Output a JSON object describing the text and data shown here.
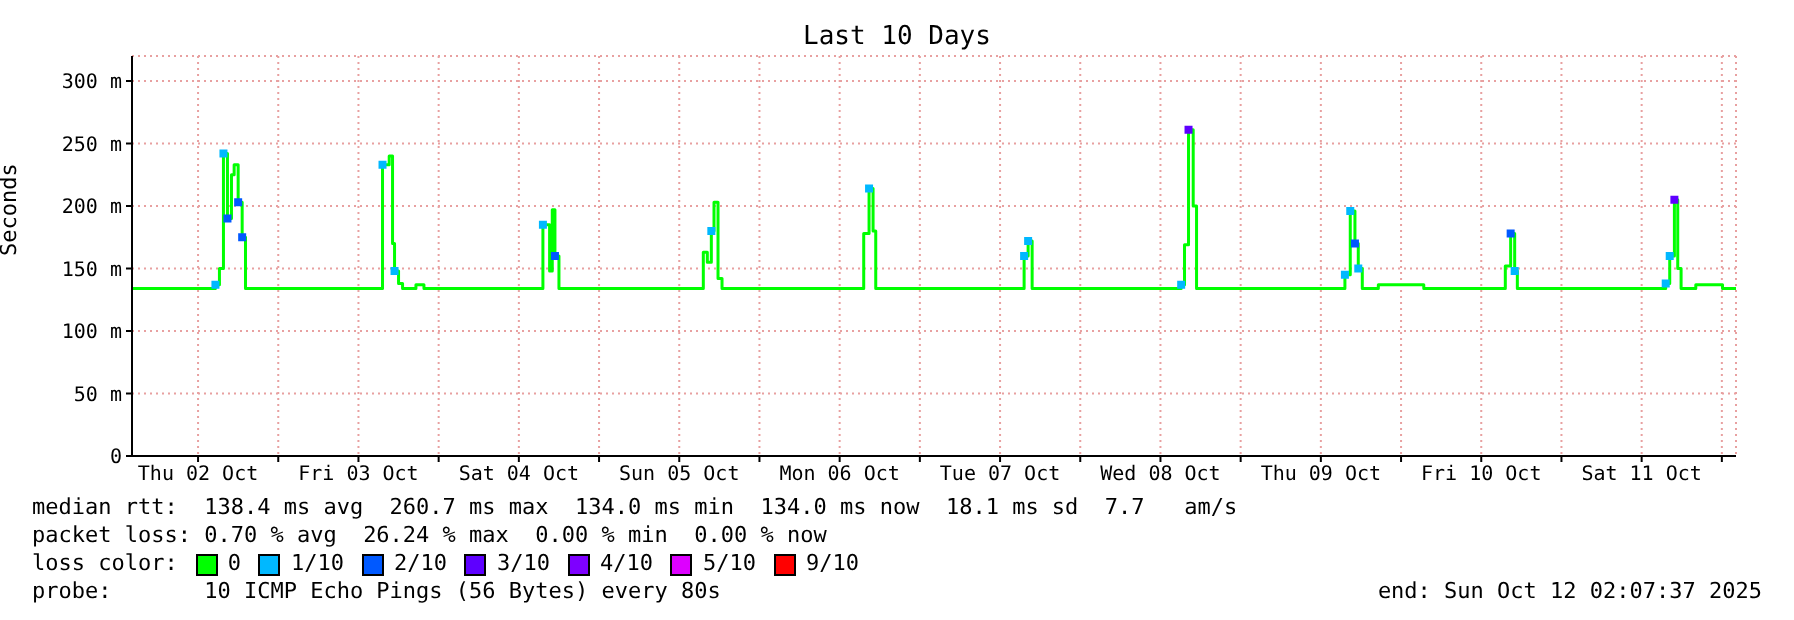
{
  "chart_data": {
    "type": "step",
    "title": "Last 10 Days",
    "ylabel": "Seconds",
    "legend_title": "loss color:",
    "x": [
      "2025-10-02T02:07",
      "2025-10-02T14:18",
      "2025-10-02T14:36",
      "2025-10-02T15:12",
      "2025-10-02T15:48",
      "2025-10-02T16:24",
      "2025-10-02T17:00",
      "2025-10-02T17:24",
      "2025-10-02T18:00",
      "2025-10-02T18:36",
      "2025-10-02T19:06",
      "2025-10-03T15:18",
      "2025-10-03T15:36",
      "2025-10-03T16:36",
      "2025-10-03T17:06",
      "2025-10-03T17:24",
      "2025-10-03T18:00",
      "2025-10-03T18:36",
      "2025-10-03T20:36",
      "2025-10-03T21:48",
      "2025-10-04T15:18",
      "2025-10-04T15:36",
      "2025-10-04T16:36",
      "2025-10-04T17:00",
      "2025-10-04T17:24",
      "2025-10-04T18:00",
      "2025-10-05T15:18",
      "2025-10-05T15:36",
      "2025-10-05T16:12",
      "2025-10-05T16:48",
      "2025-10-05T17:12",
      "2025-10-05T17:48",
      "2025-10-05T18:24",
      "2025-10-06T15:18",
      "2025-10-06T15:36",
      "2025-10-06T16:24",
      "2025-10-06T17:00",
      "2025-10-06T17:24",
      "2025-10-07T15:18",
      "2025-10-07T15:36",
      "2025-10-07T16:12",
      "2025-10-07T16:48",
      "2025-10-08T14:48",
      "2025-10-08T15:06",
      "2025-10-08T15:36",
      "2025-10-08T16:12",
      "2025-10-08T16:54",
      "2025-10-08T17:24",
      "2025-10-09T15:18",
      "2025-10-09T15:36",
      "2025-10-09T16:24",
      "2025-10-09T17:06",
      "2025-10-09T17:36",
      "2025-10-09T18:12",
      "2025-10-09T20:36",
      "2025-10-10T03:24",
      "2025-10-10T15:18",
      "2025-10-10T15:36",
      "2025-10-10T16:24",
      "2025-10-10T17:00",
      "2025-10-10T17:24",
      "2025-10-11T15:18",
      "2025-10-11T15:36",
      "2025-10-11T16:12",
      "2025-10-11T16:54",
      "2025-10-11T17:24",
      "2025-10-11T17:54",
      "2025-10-11T20:06",
      "2025-10-12T00:06",
      "2025-10-12T02:07"
    ],
    "series": [
      {
        "name": "0",
        "color": "#00ff00",
        "values": [
          134,
          134,
          137,
          150,
          242,
          190,
          225,
          233,
          203,
          175,
          134,
          134,
          233,
          240,
          170,
          148,
          138,
          134,
          137,
          134,
          134,
          185,
          148,
          197,
          160,
          134,
          134,
          163,
          155,
          180,
          203,
          142,
          134,
          134,
          178,
          214,
          180,
          134,
          134,
          160,
          172,
          134,
          134,
          137,
          169,
          261,
          200,
          134,
          134,
          145,
          196,
          170,
          150,
          134,
          137,
          134,
          134,
          152,
          178,
          148,
          134,
          134,
          138,
          160,
          205,
          150,
          134,
          137,
          134,
          134
        ]
      },
      {
        "name": "1/10",
        "color": "#00b8ff",
        "type": "scatter",
        "marker": "square",
        "values": [
          null,
          null,
          137,
          null,
          242,
          null,
          null,
          null,
          null,
          null,
          null,
          null,
          233,
          null,
          null,
          148,
          null,
          null,
          null,
          null,
          null,
          185,
          null,
          null,
          null,
          null,
          null,
          null,
          null,
          180,
          null,
          null,
          null,
          null,
          null,
          214,
          null,
          null,
          null,
          160,
          172,
          null,
          null,
          137,
          null,
          null,
          null,
          null,
          null,
          145,
          196,
          null,
          150,
          null,
          null,
          null,
          null,
          null,
          null,
          148,
          null,
          null,
          138,
          160,
          null,
          null,
          null,
          null,
          null,
          null
        ]
      },
      {
        "name": "2/10",
        "color": "#0059ff",
        "type": "scatter",
        "marker": "square",
        "values": [
          null,
          null,
          null,
          null,
          null,
          190,
          null,
          null,
          203,
          175,
          null,
          null,
          null,
          null,
          null,
          null,
          null,
          null,
          null,
          null,
          null,
          null,
          null,
          null,
          160,
          null,
          null,
          null,
          null,
          null,
          null,
          null,
          null,
          null,
          null,
          null,
          null,
          null,
          null,
          null,
          null,
          null,
          null,
          null,
          null,
          null,
          null,
          null,
          null,
          null,
          null,
          170,
          null,
          null,
          null,
          null,
          null,
          null,
          178,
          null,
          null,
          null,
          null,
          null,
          null,
          null,
          null,
          null,
          null,
          null
        ]
      },
      {
        "name": "3/10",
        "color": "#5e00ff",
        "type": "scatter",
        "marker": "square",
        "values": [
          null,
          null,
          null,
          null,
          null,
          null,
          null,
          null,
          null,
          null,
          null,
          null,
          null,
          null,
          null,
          null,
          null,
          null,
          null,
          null,
          null,
          null,
          null,
          null,
          null,
          null,
          null,
          null,
          null,
          null,
          null,
          null,
          null,
          null,
          null,
          null,
          null,
          null,
          null,
          null,
          null,
          null,
          null,
          null,
          null,
          261,
          null,
          null,
          null,
          null,
          null,
          null,
          null,
          null,
          null,
          null,
          null,
          null,
          null,
          null,
          null,
          null,
          null,
          null,
          205,
          null,
          null,
          null,
          null,
          null
        ]
      },
      {
        "name": "4/10",
        "color": "#7e00ff",
        "type": "scatter",
        "marker": "square",
        "values": [
          null,
          null,
          null,
          null,
          null,
          null,
          null,
          null,
          null,
          null,
          null,
          null,
          null,
          null,
          null,
          null,
          null,
          null,
          null,
          null,
          null,
          null,
          null,
          null,
          null,
          null,
          null,
          null,
          null,
          null,
          null,
          null,
          null,
          null,
          null,
          null,
          null,
          null,
          null,
          null,
          null,
          null,
          null,
          null,
          null,
          null,
          null,
          null,
          null,
          null,
          null,
          null,
          null,
          null,
          null,
          null,
          null,
          null,
          null,
          null,
          null,
          null,
          null,
          null,
          null,
          null,
          null,
          null,
          null,
          null
        ]
      },
      {
        "name": "5/10",
        "color": "#dd00ff",
        "type": "scatter",
        "marker": "square",
        "values": [
          null,
          null,
          null,
          null,
          null,
          null,
          null,
          null,
          null,
          null,
          null,
          null,
          null,
          null,
          null,
          null,
          null,
          null,
          null,
          null,
          null,
          null,
          null,
          null,
          null,
          null,
          null,
          null,
          null,
          null,
          null,
          null,
          null,
          null,
          null,
          null,
          null,
          null,
          null,
          null,
          null,
          null,
          null,
          null,
          null,
          null,
          null,
          null,
          null,
          null,
          null,
          null,
          null,
          null,
          null,
          null,
          null,
          null,
          null,
          null,
          null,
          null,
          null,
          null,
          null,
          null,
          null,
          null,
          null,
          null
        ]
      },
      {
        "name": "9/10",
        "color": "#ff0000",
        "type": "scatter",
        "marker": "square",
        "values": [
          null,
          null,
          null,
          null,
          null,
          null,
          null,
          null,
          null,
          null,
          null,
          null,
          null,
          null,
          null,
          null,
          null,
          null,
          null,
          null,
          null,
          null,
          null,
          null,
          null,
          null,
          null,
          null,
          null,
          null,
          null,
          null,
          null,
          null,
          null,
          null,
          null,
          null,
          null,
          null,
          null,
          null,
          null,
          null,
          null,
          null,
          null,
          null,
          null,
          null,
          null,
          null,
          null,
          null,
          null,
          null,
          null,
          null,
          null,
          null,
          null,
          null,
          null,
          null,
          null,
          null,
          null,
          null,
          null,
          null
        ]
      }
    ],
    "xlim": [
      "2025-10-02T02:07",
      "2025-10-12T02:07"
    ],
    "xticks": [
      {
        "value": "2025-10-02T12:00",
        "label": "Thu 02 Oct"
      },
      {
        "value": "2025-10-03T00:00",
        "label": null
      },
      {
        "value": "2025-10-03T12:00",
        "label": "Fri 03 Oct"
      },
      {
        "value": "2025-10-04T00:00",
        "label": null
      },
      {
        "value": "2025-10-04T12:00",
        "label": "Sat 04 Oct"
      },
      {
        "value": "2025-10-05T00:00",
        "label": null
      },
      {
        "value": "2025-10-05T12:00",
        "label": "Sun 05 Oct"
      },
      {
        "value": "2025-10-06T00:00",
        "label": null
      },
      {
        "value": "2025-10-06T12:00",
        "label": "Mon 06 Oct"
      },
      {
        "value": "2025-10-07T00:00",
        "label": null
      },
      {
        "value": "2025-10-07T12:00",
        "label": "Tue 07 Oct"
      },
      {
        "value": "2025-10-08T00:00",
        "label": null
      },
      {
        "value": "2025-10-08T12:00",
        "label": "Wed 08 Oct"
      },
      {
        "value": "2025-10-09T00:00",
        "label": null
      },
      {
        "value": "2025-10-09T12:00",
        "label": "Thu 09 Oct"
      },
      {
        "value": "2025-10-10T00:00",
        "label": null
      },
      {
        "value": "2025-10-10T12:00",
        "label": "Fri 10 Oct"
      },
      {
        "value": "2025-10-11T00:00",
        "label": null
      },
      {
        "value": "2025-10-11T12:00",
        "label": "Sat 11 Oct"
      },
      {
        "value": "2025-10-12T00:00",
        "label": null
      }
    ],
    "ylim": [
      0,
      320
    ],
    "yticks": [
      0,
      {
        "value": 50,
        "label": "50 m"
      },
      {
        "value": 100,
        "label": "100 m"
      },
      {
        "value": 150,
        "label": "150 m"
      },
      {
        "value": 200,
        "label": "200 m"
      },
      {
        "value": 250,
        "label": "250 m"
      },
      {
        "value": 300,
        "label": "300 m"
      }
    ],
    "grid": true,
    "legend": "bottom",
    "marker": "none",
    "annotations": [
      "median rtt:  138.4 ms avg  260.7 ms max  134.0 ms min  134.0 ms now  18.1 ms sd  7.7   am/s",
      "packet loss: 0.70 % avg  26.24 % max  0.00 % min  0.00 % now",
      "probe:       10 ICMP Echo Pings (56 Bytes) every 80s",
      "end: Sun Oct 12 02:07:37 2025"
    ]
  }
}
